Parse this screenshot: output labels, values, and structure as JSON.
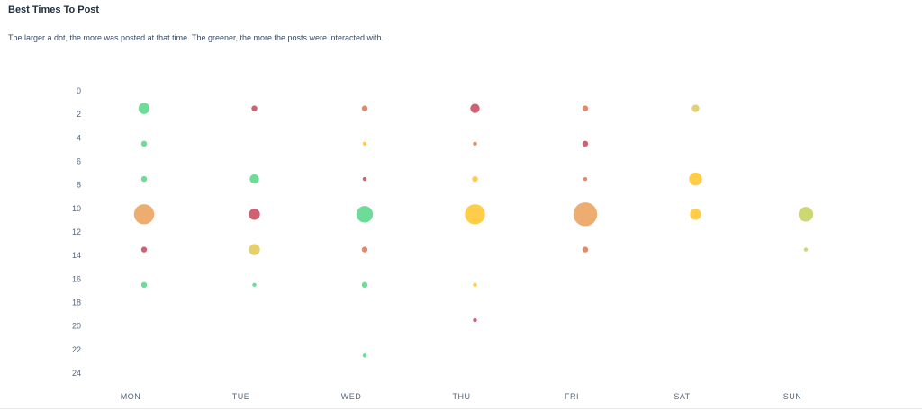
{
  "header": {
    "title": "Best Times To Post",
    "subtitle": "The larger a dot, the more was posted at that time. The greener, the more the posts were interacted with."
  },
  "chart_data": {
    "type": "scatter",
    "title": "Best Times To Post",
    "xlabel": "",
    "ylabel": "",
    "categories": [
      "MON",
      "TUE",
      "WED",
      "THU",
      "FRI",
      "SAT",
      "SUN"
    ],
    "y_ticks": [
      0,
      2,
      4,
      6,
      8,
      10,
      12,
      14,
      16,
      18,
      20,
      22,
      24
    ],
    "ylim": [
      0,
      24
    ],
    "y_inverted": true,
    "size_meaning": "amount posted",
    "color_meaning": "interaction (greener = more)",
    "colors": {
      "green": "#5fd98f",
      "yellowgreen": "#c8d46a",
      "yellow": "#ffc93a",
      "khaki": "#e3cc62",
      "orange": "#eda664",
      "salmon": "#e07f62",
      "red": "#cc5466"
    },
    "points": [
      {
        "day": "MON",
        "hour": 1.5,
        "size": 5,
        "color": "green"
      },
      {
        "day": "MON",
        "hour": 4.5,
        "size": 2,
        "color": "green"
      },
      {
        "day": "MON",
        "hour": 7.5,
        "size": 2,
        "color": "green"
      },
      {
        "day": "MON",
        "hour": 10.5,
        "size": 10,
        "color": "orange"
      },
      {
        "day": "MON",
        "hour": 13.5,
        "size": 2,
        "color": "red"
      },
      {
        "day": "MON",
        "hour": 16.5,
        "size": 2,
        "color": "green"
      },
      {
        "day": "TUE",
        "hour": 1.5,
        "size": 2,
        "color": "red"
      },
      {
        "day": "TUE",
        "hour": 7.5,
        "size": 4,
        "color": "green"
      },
      {
        "day": "TUE",
        "hour": 10.5,
        "size": 5,
        "color": "red"
      },
      {
        "day": "TUE",
        "hour": 13.5,
        "size": 5,
        "color": "khaki"
      },
      {
        "day": "TUE",
        "hour": 16.5,
        "size": 1,
        "color": "green"
      },
      {
        "day": "WED",
        "hour": 1.5,
        "size": 2,
        "color": "salmon"
      },
      {
        "day": "WED",
        "hour": 4.5,
        "size": 1,
        "color": "yellow"
      },
      {
        "day": "WED",
        "hour": 7.5,
        "size": 1,
        "color": "red"
      },
      {
        "day": "WED",
        "hour": 10.5,
        "size": 8,
        "color": "green"
      },
      {
        "day": "WED",
        "hour": 13.5,
        "size": 2,
        "color": "salmon"
      },
      {
        "day": "WED",
        "hour": 16.5,
        "size": 2,
        "color": "green"
      },
      {
        "day": "WED",
        "hour": 22.5,
        "size": 1,
        "color": "green"
      },
      {
        "day": "THU",
        "hour": 1.5,
        "size": 4,
        "color": "red"
      },
      {
        "day": "THU",
        "hour": 4.5,
        "size": 1,
        "color": "salmon"
      },
      {
        "day": "THU",
        "hour": 7.5,
        "size": 2,
        "color": "yellow"
      },
      {
        "day": "THU",
        "hour": 10.5,
        "size": 10,
        "color": "yellow"
      },
      {
        "day": "THU",
        "hour": 16.5,
        "size": 1,
        "color": "yellow"
      },
      {
        "day": "THU",
        "hour": 19.5,
        "size": 1,
        "color": "red"
      },
      {
        "day": "FRI",
        "hour": 1.5,
        "size": 2,
        "color": "salmon"
      },
      {
        "day": "FRI",
        "hour": 4.5,
        "size": 2,
        "color": "red"
      },
      {
        "day": "FRI",
        "hour": 7.5,
        "size": 1,
        "color": "salmon"
      },
      {
        "day": "FRI",
        "hour": 10.5,
        "size": 12,
        "color": "orange"
      },
      {
        "day": "FRI",
        "hour": 13.5,
        "size": 2,
        "color": "salmon"
      },
      {
        "day": "SAT",
        "hour": 1.5,
        "size": 3,
        "color": "khaki"
      },
      {
        "day": "SAT",
        "hour": 7.5,
        "size": 6,
        "color": "yellow"
      },
      {
        "day": "SAT",
        "hour": 10.5,
        "size": 5,
        "color": "yellow"
      },
      {
        "day": "SUN",
        "hour": 10.5,
        "size": 7,
        "color": "yellowgreen"
      },
      {
        "day": "SUN",
        "hour": 13.5,
        "size": 1,
        "color": "yellowgreen"
      }
    ]
  }
}
